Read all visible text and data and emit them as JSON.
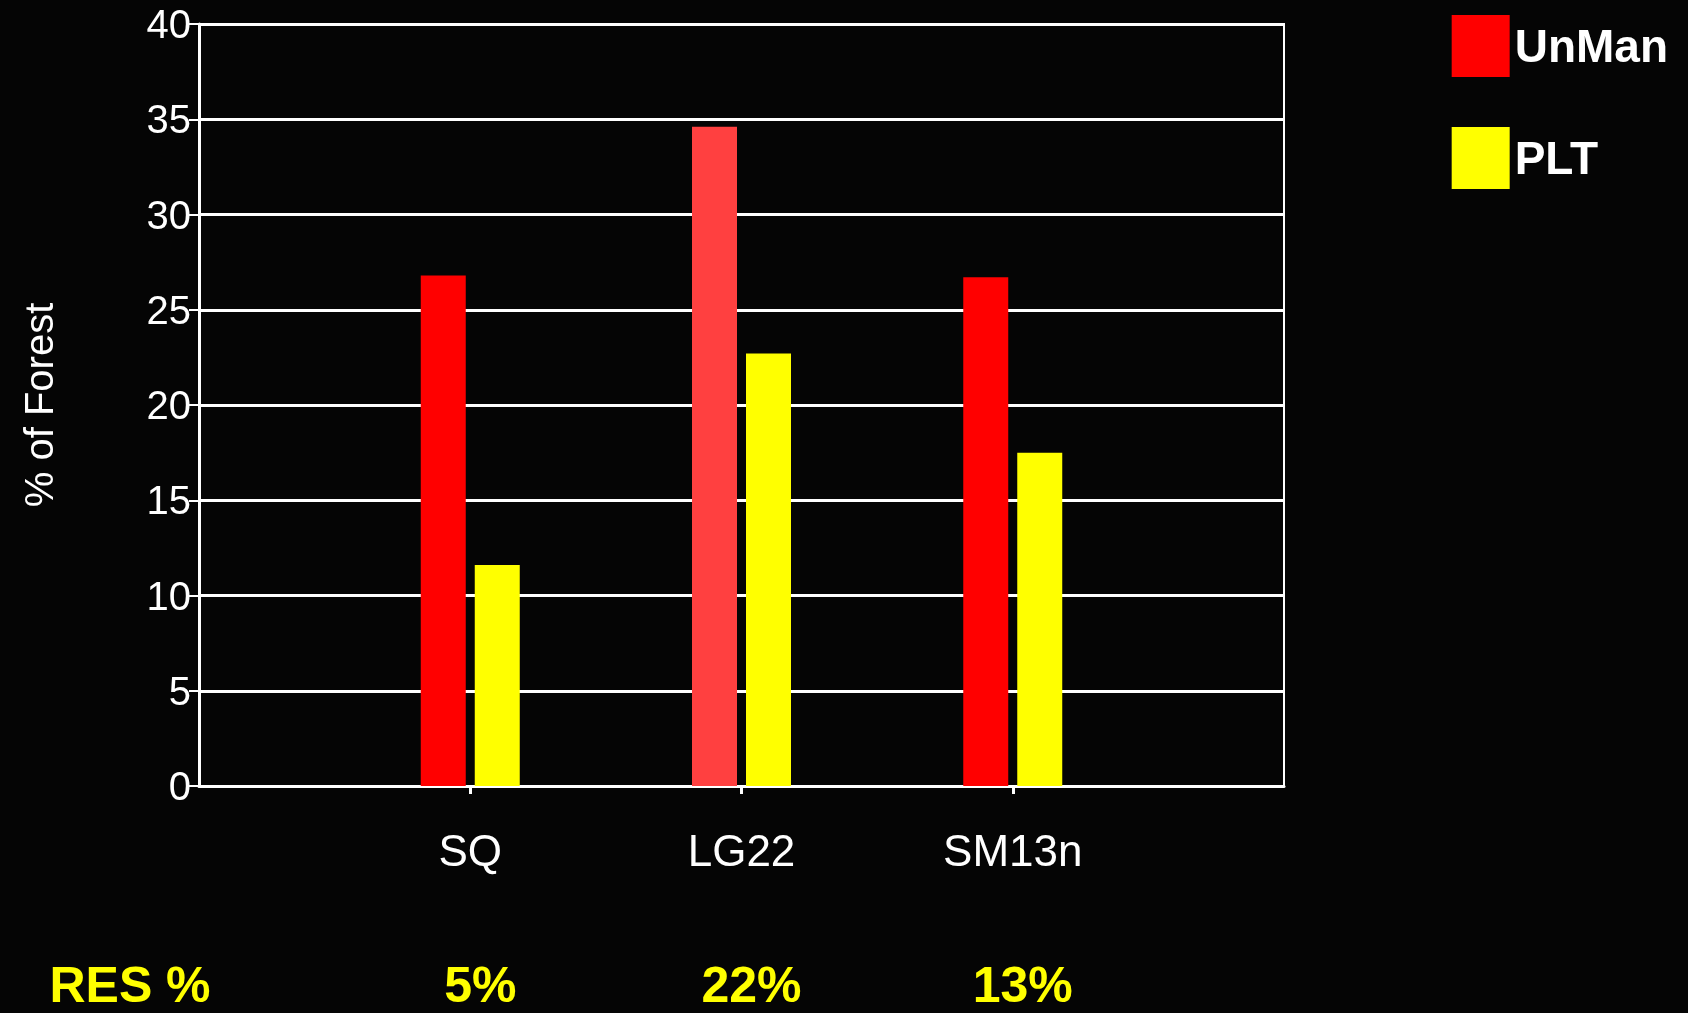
{
  "chart_data": {
    "type": "bar",
    "ylabel": "% of Forest",
    "categories": [
      null,
      "SQ",
      "LG22",
      "SM13n",
      null
    ],
    "series": [
      {
        "name": "UnMan",
        "color": "#ff0000",
        "colors": [
          null,
          "#ff0000",
          "#ff4040",
          "#ff0000",
          null
        ],
        "values": [
          null,
          26.8,
          34.6,
          26.7,
          null
        ]
      },
      {
        "name": "PLT",
        "color": "#ffff00",
        "values": [
          null,
          11.6,
          22.7,
          17.5,
          null
        ]
      }
    ],
    "ylim": [
      0,
      40
    ],
    "yticks": [
      0,
      5,
      10,
      15,
      20,
      25,
      30,
      35,
      40
    ],
    "grid": "y",
    "legend": "top right",
    "annotations": [
      "RES %",
      "5%",
      "22%",
      "13%"
    ]
  }
}
